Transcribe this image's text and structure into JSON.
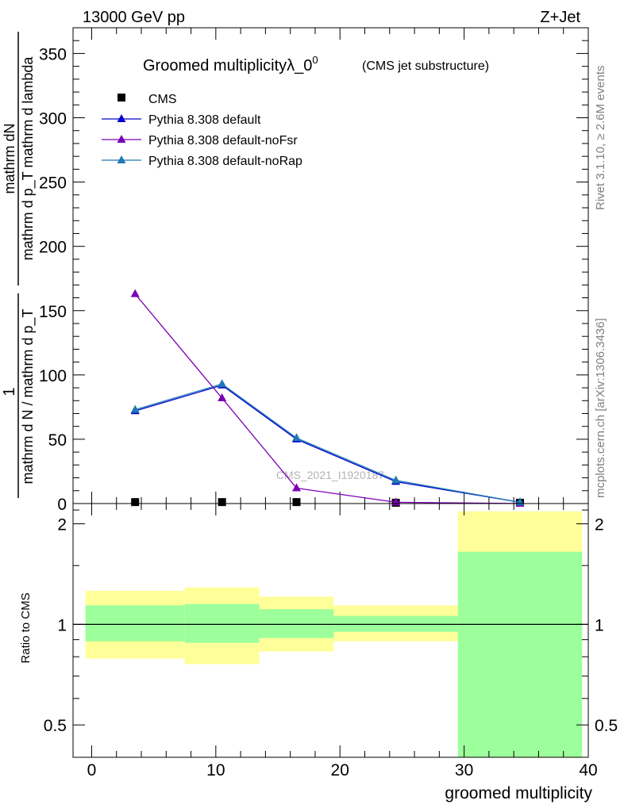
{
  "header": {
    "left": "13000 GeV pp",
    "right": "Z+Jet"
  },
  "side_labels": {
    "rivet": "Rivet 3.1.10, ≥ 2.6M events",
    "mcplots": "mcplots.cern.ch [arXiv:1306.3436]"
  },
  "watermark": "CMS_2021_I1920187",
  "chart_data": [
    {
      "type": "line",
      "title": "Groomed multiplicityλ_0",
      "title_sup": "0",
      "subtitle": "(CMS jet substructure)",
      "ylabel_numerator": "mathrm dN",
      "ylabel_denominator": "mathrm d p_T mathrm d lambda",
      "ylabel_line1_numerator": "1",
      "ylabel_line1_denominator": "mathrm d N / mathrm d p_T",
      "ylim": [
        0,
        370
      ],
      "xlim": [
        -1.5,
        40
      ],
      "yticks": [
        "0",
        "50",
        "100",
        "150",
        "200",
        "250",
        "300",
        "350"
      ],
      "ytick_values": [
        0,
        50,
        100,
        150,
        200,
        250,
        300,
        350
      ],
      "legend_position": "top-left",
      "series": [
        {
          "name": "CMS",
          "color": "#000000",
          "marker": "square",
          "x": [
            3.5,
            10.5,
            16.5,
            24.5,
            34.5
          ],
          "values": [
            0.5,
            0.5,
            0.5,
            0,
            0
          ]
        },
        {
          "name": "Pythia 8.308 default",
          "color": "#0000cc",
          "marker": "triangle",
          "x": [
            3.5,
            10.5,
            16.5,
            24.5,
            34.5
          ],
          "values": [
            72,
            92,
            50,
            17,
            1
          ]
        },
        {
          "name": "Pythia 8.308 default-noFsr",
          "color": "#7b00b5",
          "marker": "triangle",
          "x": [
            3.5,
            10.5,
            16.5,
            24.5,
            34.5
          ],
          "values": [
            163,
            82,
            12,
            1,
            0
          ]
        },
        {
          "name": "Pythia 8.308 default-noRap",
          "color": "#1f78b4",
          "marker": "triangle",
          "x": [
            3.5,
            10.5,
            16.5,
            24.5,
            34.5
          ],
          "values": [
            73,
            93,
            51,
            18,
            1
          ]
        }
      ]
    },
    {
      "type": "area",
      "ylabel": "Ratio to CMS",
      "xlabel": "groomed multiplicity",
      "ylim": [
        0.4,
        2.3
      ],
      "scale": "log",
      "xlim": [
        -1.5,
        40
      ],
      "xticks": [
        "0",
        "10",
        "20",
        "30",
        "40"
      ],
      "xtick_values": [
        0,
        10,
        20,
        30,
        40
      ],
      "yticks": [
        "0.5",
        "1",
        "2"
      ],
      "ytick_values": [
        0.5,
        1,
        2
      ],
      "reference_line": 1,
      "bands": [
        {
          "x0": -0.5,
          "x1": 7.5,
          "stat_lo": 0.89,
          "stat_hi": 1.14,
          "total_lo": 0.79,
          "total_hi": 1.26
        },
        {
          "x0": 7.5,
          "x1": 13.5,
          "stat_lo": 0.88,
          "stat_hi": 1.15,
          "total_lo": 0.76,
          "total_hi": 1.29
        },
        {
          "x0": 13.5,
          "x1": 19.5,
          "stat_lo": 0.91,
          "stat_hi": 1.11,
          "total_lo": 0.83,
          "total_hi": 1.21
        },
        {
          "x0": 19.5,
          "x1": 29.5,
          "stat_lo": 0.95,
          "stat_hi": 1.06,
          "total_lo": 0.89,
          "total_hi": 1.14
        },
        {
          "x0": 29.5,
          "x1": 39.5,
          "stat_lo": 0.35,
          "stat_hi": 1.65,
          "total_lo": 0.35,
          "total_hi": 2.18
        }
      ],
      "band_colors": {
        "stat": "#9cff9c",
        "total": "#ffff99"
      }
    }
  ]
}
